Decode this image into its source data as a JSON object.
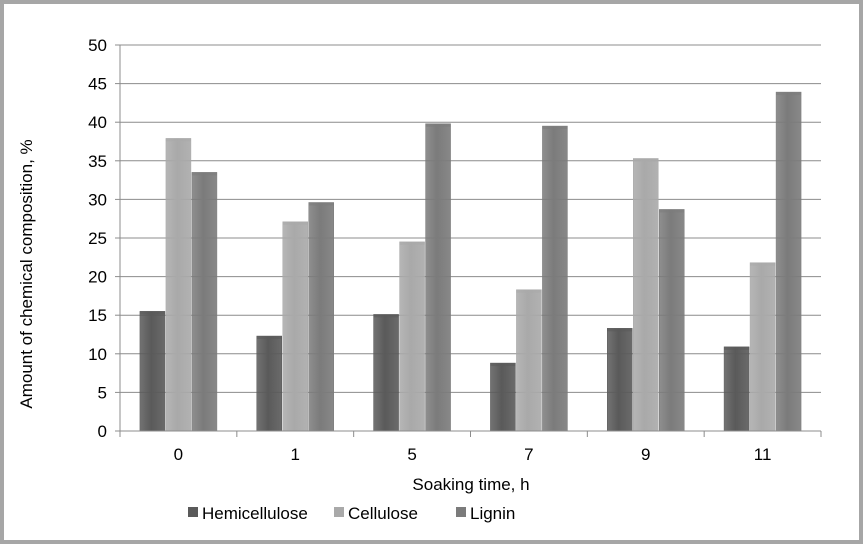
{
  "chart_data": {
    "type": "bar",
    "title": "",
    "xlabel": "Soaking time, h",
    "ylabel": "Amount of chemical composition, %",
    "categories": [
      "0",
      "1",
      "5",
      "7",
      "9",
      "11"
    ],
    "ylim": [
      0,
      50
    ],
    "yticks": [
      "0",
      "5",
      "10",
      "15",
      "20",
      "25",
      "30",
      "35",
      "40",
      "45",
      "50"
    ],
    "grid": true,
    "legend_position": "bottom",
    "series": [
      {
        "name": "Hemicellulose",
        "color": "#5a5a5a",
        "values": [
          15.5,
          12.3,
          15.1,
          8.8,
          13.3,
          10.9
        ]
      },
      {
        "name": "Cellulose",
        "color": "#a9a9a9",
        "values": [
          37.9,
          27.1,
          24.5,
          18.3,
          35.3,
          21.8
        ]
      },
      {
        "name": "Lignin",
        "color": "#7b7b7b",
        "values": [
          33.5,
          29.6,
          39.8,
          39.5,
          28.7,
          43.9
        ]
      }
    ]
  }
}
